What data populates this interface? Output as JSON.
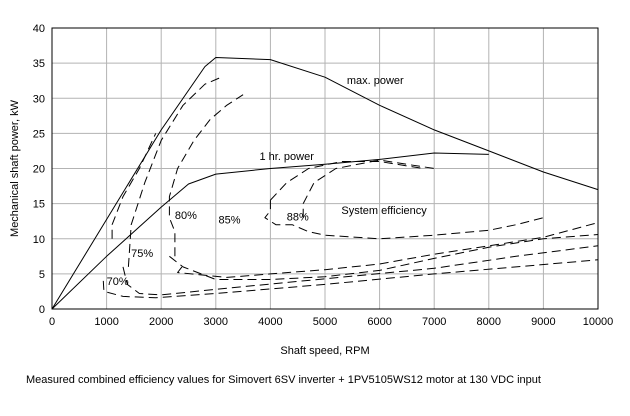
{
  "chart_data": {
    "type": "line",
    "title": "",
    "xlabel": "Shaft speed, RPM",
    "ylabel": "Mechanical shaft power, kW",
    "xlim": [
      0,
      10000
    ],
    "ylim": [
      0,
      40
    ],
    "xticks": [
      0,
      1000,
      2000,
      3000,
      4000,
      5000,
      6000,
      7000,
      8000,
      9000,
      10000
    ],
    "yticks": [
      0,
      5,
      10,
      15,
      20,
      25,
      30,
      35,
      40
    ],
    "grid": true,
    "caption": "Measured  combined  efficiency values for  Simovert  6SV  inverter + 1PV5105WS12  motor  at 130 VDC input",
    "series": [
      {
        "name": "max. power",
        "style": "solid",
        "points": [
          [
            0,
            0
          ],
          [
            2000,
            25.5
          ],
          [
            2800,
            34.5
          ],
          [
            3000,
            35.8
          ],
          [
            4000,
            35.5
          ],
          [
            5000,
            33
          ],
          [
            6000,
            29
          ],
          [
            7000,
            25.5
          ],
          [
            8000,
            22.5
          ],
          [
            9000,
            19.5
          ],
          [
            10000,
            17
          ]
        ]
      },
      {
        "name": "1 hr. power",
        "style": "solid",
        "points": [
          [
            0,
            0
          ],
          [
            1000,
            7.5
          ],
          [
            2000,
            14.5
          ],
          [
            2500,
            17.8
          ],
          [
            3000,
            19.2
          ],
          [
            4000,
            20
          ],
          [
            5000,
            20.6
          ],
          [
            6000,
            21.3
          ],
          [
            7000,
            22.2
          ],
          [
            8000,
            22
          ]
        ]
      },
      {
        "name": "70%",
        "style": "dashed",
        "points": [
          [
            940,
            4
          ],
          [
            950,
            2.5
          ],
          [
            1300,
            1.8
          ],
          [
            1900,
            1.6
          ],
          [
            3000,
            2.2
          ],
          [
            5000,
            3.5
          ],
          [
            7000,
            5
          ],
          [
            8500,
            6
          ],
          [
            10000,
            7
          ]
        ]
      },
      {
        "name": "75%",
        "style": "dashed",
        "points": [
          [
            1100,
            10
          ],
          [
            1100,
            12
          ],
          [
            1300,
            16
          ],
          [
            1600,
            20
          ],
          [
            1900,
            25
          ]
        ]
      },
      {
        "name": "75% (lower)",
        "style": "dashed",
        "points": [
          [
            1300,
            6
          ],
          [
            1380,
            3.5
          ],
          [
            1600,
            2.2
          ],
          [
            2000,
            2
          ],
          [
            3000,
            2.8
          ],
          [
            5000,
            4.3
          ],
          [
            7000,
            5.8
          ],
          [
            8500,
            7.5
          ],
          [
            10000,
            9
          ]
        ]
      },
      {
        "name": "80%",
        "style": "dashed",
        "points": [
          [
            1400,
            6
          ],
          [
            1450,
            12
          ],
          [
            1700,
            18
          ],
          [
            2000,
            24
          ],
          [
            2400,
            29
          ],
          [
            2800,
            32
          ],
          [
            3100,
            33
          ]
        ]
      },
      {
        "name": "80% (lower)",
        "style": "dashed",
        "points": [
          [
            2150,
            7.5
          ],
          [
            2400,
            6
          ],
          [
            3000,
            4.2
          ],
          [
            4000,
            4.2
          ],
          [
            5000,
            4.6
          ],
          [
            6000,
            5.5
          ],
          [
            7000,
            7.2
          ],
          [
            8000,
            8.8
          ],
          [
            9000,
            10
          ],
          [
            10000,
            10.6
          ]
        ]
      },
      {
        "name": "85%",
        "style": "dashed",
        "points": [
          [
            2250,
            7.5
          ],
          [
            2250,
            11
          ],
          [
            2150,
            13
          ],
          [
            2150,
            16
          ],
          [
            2300,
            20
          ],
          [
            2600,
            24
          ],
          [
            2900,
            27
          ],
          [
            3200,
            29
          ],
          [
            3500,
            30.5
          ]
        ]
      },
      {
        "name": "85% (lower)",
        "style": "dashed",
        "points": [
          [
            2380,
            6
          ],
          [
            2300,
            5.2
          ],
          [
            3200,
            4.5
          ],
          [
            4000,
            5
          ],
          [
            5000,
            5.6
          ],
          [
            6000,
            6.4
          ],
          [
            7000,
            7.8
          ],
          [
            8000,
            9
          ],
          [
            9000,
            10.2
          ],
          [
            10000,
            12.3
          ]
        ]
      },
      {
        "name": "88%",
        "style": "dashed",
        "points": [
          [
            4000,
            15.5
          ],
          [
            4000,
            14
          ],
          [
            3900,
            13
          ],
          [
            4100,
            12
          ],
          [
            4400,
            12
          ],
          [
            4700,
            11
          ],
          [
            5000,
            10.5
          ],
          [
            6000,
            10
          ],
          [
            7000,
            10.5
          ],
          [
            8000,
            11.2
          ],
          [
            8500,
            12
          ],
          [
            9000,
            13
          ]
        ]
      },
      {
        "name": "88% (upper)",
        "style": "dashed",
        "points": [
          [
            4000,
            15.5
          ],
          [
            4300,
            18
          ],
          [
            4700,
            20
          ],
          [
            5300,
            21
          ],
          [
            6000,
            21
          ],
          [
            6800,
            20
          ]
        ]
      },
      {
        "name": "System efficiency",
        "style": "dashed",
        "points": [
          [
            4600,
            13
          ],
          [
            4600,
            15
          ],
          [
            4800,
            18
          ],
          [
            5200,
            20
          ],
          [
            6000,
            21.2
          ],
          [
            7000,
            20
          ]
        ]
      }
    ],
    "annotations": [
      {
        "text": "max. power",
        "x": 5400,
        "y": 32
      },
      {
        "text": "1 hr. power",
        "x": 3800,
        "y": 21.2
      },
      {
        "text": "System efficiency",
        "x": 5300,
        "y": 13.5
      },
      {
        "text": "88%",
        "x": 4300,
        "y": 12.6
      },
      {
        "text": "85%",
        "x": 3050,
        "y": 12.2
      },
      {
        "text": "80%",
        "x": 2250,
        "y": 12.8
      },
      {
        "text": "75%",
        "x": 1450,
        "y": 7.4
      },
      {
        "text": "70%",
        "x": 1000,
        "y": 3.4
      }
    ]
  }
}
